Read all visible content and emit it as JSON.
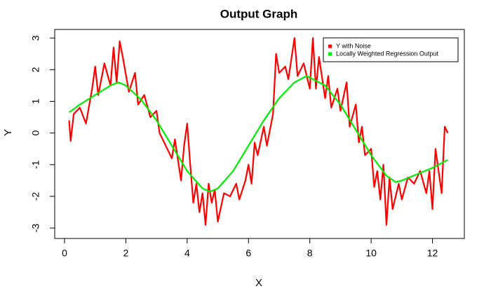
{
  "chart_data": {
    "type": "line",
    "title": "Output Graph",
    "x_label": "X",
    "y_label": "Y",
    "xlim": [
      -0.32,
      13.04
    ],
    "ylim": [
      -3.33,
      3.27
    ],
    "xticks": [
      0,
      2,
      4,
      6,
      8,
      10,
      12
    ],
    "yticks": [
      -3,
      -2,
      -1,
      0,
      1,
      2,
      3
    ],
    "legend": "top-right",
    "series": [
      {
        "name": "Y with Noise",
        "color": "#ff0000",
        "x": [
          0.15,
          0.2,
          0.3,
          0.5,
          0.7,
          0.9,
          1.0,
          1.1,
          1.3,
          1.5,
          1.6,
          1.7,
          1.8,
          1.9,
          2.1,
          2.3,
          2.4,
          2.6,
          2.8,
          3.0,
          3.1,
          3.3,
          3.5,
          3.6,
          3.8,
          3.9,
          4.0,
          4.1,
          4.2,
          4.3,
          4.4,
          4.5,
          4.6,
          4.7,
          4.8,
          4.9,
          5.0,
          5.2,
          5.4,
          5.6,
          5.7,
          5.9,
          6.0,
          6.1,
          6.2,
          6.3,
          6.5,
          6.6,
          6.8,
          6.9,
          7.0,
          7.2,
          7.3,
          7.5,
          7.6,
          7.8,
          8.0,
          8.1,
          8.2,
          8.3,
          8.5,
          8.6,
          8.7,
          8.9,
          9.0,
          9.2,
          9.3,
          9.5,
          9.6,
          9.7,
          9.8,
          10.0,
          10.1,
          10.2,
          10.3,
          10.4,
          10.5,
          10.6,
          10.7,
          10.9,
          11.0,
          11.2,
          11.4,
          11.6,
          11.8,
          11.9,
          12.0,
          12.1,
          12.3,
          12.4,
          12.5
        ],
        "values": [
          0.4,
          -0.25,
          0.6,
          0.8,
          0.3,
          1.4,
          2.1,
          1.2,
          2.2,
          1.5,
          2.7,
          1.6,
          2.9,
          2.4,
          1.3,
          1.9,
          0.9,
          1.2,
          0.5,
          0.7,
          0.0,
          -0.4,
          -0.8,
          -0.2,
          -1.5,
          -0.4,
          0.3,
          -1.0,
          -2.2,
          -1.6,
          -2.5,
          -1.9,
          -2.9,
          -1.6,
          -2.2,
          -1.8,
          -2.8,
          -1.9,
          -2.0,
          -1.6,
          -2.1,
          -1.5,
          -1.0,
          -1.6,
          -0.3,
          -0.7,
          0.2,
          -0.4,
          0.6,
          2.5,
          1.9,
          2.1,
          1.7,
          3.0,
          1.8,
          2.2,
          1.4,
          3.0,
          1.4,
          2.4,
          1.1,
          1.8,
          0.8,
          1.4,
          0.7,
          1.6,
          0.2,
          0.9,
          -0.3,
          0.2,
          -0.7,
          -0.5,
          -1.7,
          -1.2,
          -2.1,
          -1.0,
          -2.9,
          -1.4,
          -2.4,
          -1.6,
          -2.1,
          -1.4,
          -1.6,
          -1.2,
          -1.9,
          -1.2,
          -2.4,
          -0.5,
          -1.9,
          0.2,
          0.0
        ]
      },
      {
        "name": "Locally Weighted Regression Output",
        "color": "#00ee00",
        "x": [
          0.15,
          0.5,
          1.0,
          1.5,
          1.75,
          2.0,
          2.5,
          3.0,
          3.5,
          4.0,
          4.5,
          4.75,
          5.0,
          5.5,
          6.0,
          6.5,
          7.0,
          7.5,
          7.9,
          8.5,
          9.0,
          9.5,
          10.0,
          10.5,
          10.8,
          11.0,
          11.5,
          12.0,
          12.5
        ],
        "values": [
          0.65,
          0.9,
          1.2,
          1.5,
          1.6,
          1.5,
          1.05,
          0.4,
          -0.4,
          -1.2,
          -1.75,
          -1.85,
          -1.75,
          -1.2,
          -0.4,
          0.4,
          1.1,
          1.6,
          1.8,
          1.5,
          0.9,
          0.1,
          -0.7,
          -1.35,
          -1.55,
          -1.5,
          -1.3,
          -1.1,
          -0.85
        ]
      }
    ]
  }
}
